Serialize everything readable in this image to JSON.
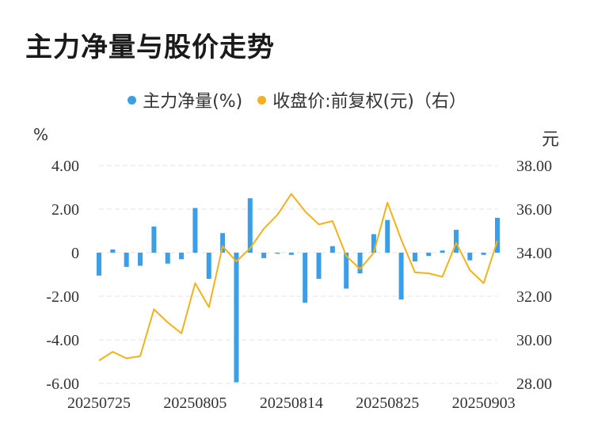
{
  "title": "主力净量与股价走势",
  "legend": {
    "series1": "主力净量(%)",
    "series2": "收盘价:前复权(元)（右）"
  },
  "units": {
    "left": "%",
    "right": "元"
  },
  "colors": {
    "bar": "#3a9ee8",
    "line": "#f2b21c",
    "grid": "#e3e3e3",
    "text": "#333333"
  },
  "chart_data": {
    "type": "bar",
    "title": "主力净量与股价走势",
    "ylabel": "%",
    "y2label": "元",
    "ylim": [
      -6,
      4
    ],
    "y2lim": [
      28,
      38
    ],
    "yticks": [
      "4.00",
      "2.00",
      "0",
      "-2.00",
      "-4.00",
      "-6.00"
    ],
    "y2ticks": [
      "38.00",
      "36.00",
      "34.00",
      "32.00",
      "30.00",
      "28.00"
    ],
    "xtick_labels": [
      "20250725",
      "20250805",
      "20250814",
      "20250825",
      "20250903"
    ],
    "xtick_index": [
      0,
      7,
      14,
      21,
      28
    ],
    "categories": [
      "20250725",
      "20250728",
      "20250729",
      "20250730",
      "20250731",
      "20250801",
      "20250804",
      "20250805",
      "20250806",
      "20250807",
      "20250808",
      "20250811",
      "20250812",
      "20250813",
      "20250814",
      "20250815",
      "20250818",
      "20250819",
      "20250820",
      "20250821",
      "20250822",
      "20250825",
      "20250826",
      "20250827",
      "20250828",
      "20250829",
      "20250901",
      "20250902",
      "20250903",
      "20250904"
    ],
    "series": [
      {
        "name": "主力净量(%)",
        "type": "bar",
        "values": [
          -1.05,
          0.15,
          -0.65,
          -0.6,
          1.2,
          -0.5,
          -0.3,
          2.05,
          -1.2,
          0.9,
          -5.95,
          2.5,
          -0.25,
          -0.05,
          -0.1,
          -2.3,
          -1.2,
          0.3,
          -1.65,
          -0.95,
          0.85,
          1.5,
          -2.15,
          -0.4,
          -0.15,
          0.1,
          1.05,
          -0.35,
          -0.1,
          1.6
        ]
      },
      {
        "name": "收盘价:前复权(元)（右）",
        "type": "line",
        "axis": "right",
        "values": [
          29.05,
          29.45,
          29.15,
          29.25,
          31.4,
          30.8,
          30.3,
          32.6,
          31.5,
          34.3,
          33.6,
          34.2,
          35.1,
          35.75,
          36.7,
          35.9,
          35.3,
          35.45,
          33.85,
          33.25,
          34.0,
          36.3,
          34.6,
          33.1,
          33.05,
          32.9,
          34.45,
          33.2,
          32.6,
          34.55
        ]
      }
    ]
  }
}
